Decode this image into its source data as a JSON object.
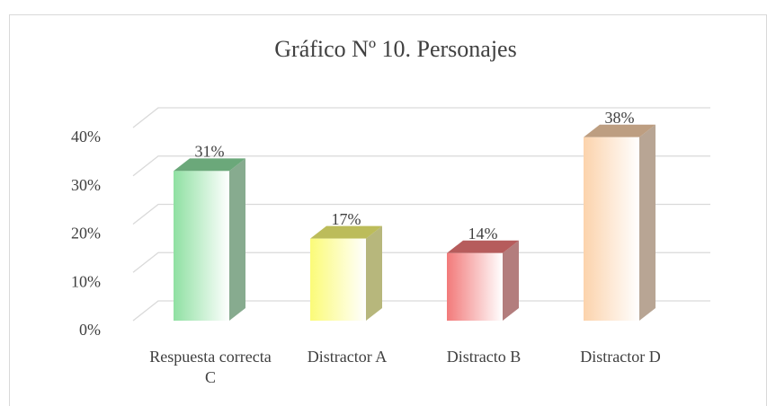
{
  "chart_data": {
    "type": "bar3d",
    "title": "Gráfico Nº 10. Personajes",
    "categories": [
      "Respuesta correcta C",
      "Distractor A",
      "Distracto B",
      "Distractor D"
    ],
    "values": [
      31,
      17,
      14,
      38
    ],
    "value_labels": [
      "31%",
      "17%",
      "14%",
      "38%"
    ],
    "colors": [
      "#8fe0a2",
      "#fbfb78",
      "#f27a7a",
      "#fcd3ac"
    ],
    "ylim": [
      0,
      40
    ],
    "yticks": [
      {
        "value": 0,
        "label": "0%"
      },
      {
        "value": 10,
        "label": "10%"
      },
      {
        "value": 20,
        "label": "20%"
      },
      {
        "value": 30,
        "label": "30%"
      },
      {
        "value": 40,
        "label": "40%"
      }
    ],
    "grid": true
  }
}
